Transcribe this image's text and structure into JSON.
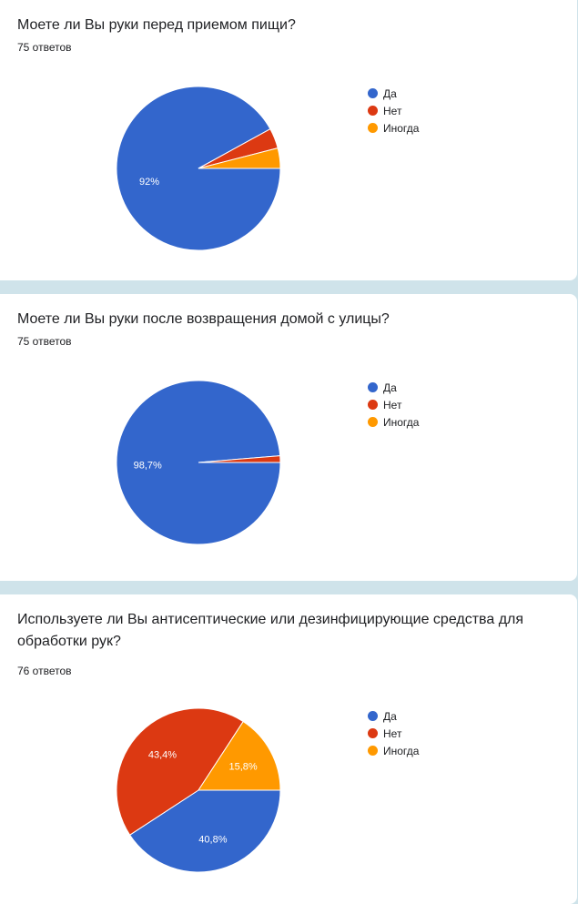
{
  "colors": {
    "yes": "#3366cc",
    "no": "#dc3912",
    "sometimes": "#ff9900"
  },
  "legend_labels": [
    "Да",
    "Нет",
    "Иногда"
  ],
  "chart_data": [
    {
      "type": "pie",
      "title": "Моете ли Вы руки перед приемом пищи?",
      "subtitle": "75 ответов",
      "categories": [
        "Да",
        "Нет",
        "Иногда"
      ],
      "values": [
        92,
        4,
        4
      ],
      "data_labels": [
        "92%",
        "",
        ""
      ],
      "legend_position": "right"
    },
    {
      "type": "pie",
      "title": "Моете ли Вы руки после возвращения домой с улицы?",
      "subtitle": "75 ответов",
      "categories": [
        "Да",
        "Нет",
        "Иногда"
      ],
      "values": [
        98.7,
        1.3,
        0
      ],
      "data_labels": [
        "98,7%",
        "",
        ""
      ],
      "legend_position": "right"
    },
    {
      "type": "pie",
      "title": "Используете ли Вы антисептические или дезинфицирующие средства для обработки рук?",
      "subtitle": "76 ответов",
      "categories": [
        "Да",
        "Нет",
        "Иногда"
      ],
      "values": [
        40.8,
        43.4,
        15.8
      ],
      "data_labels": [
        "40,8%",
        "43,4%",
        "15,8%"
      ],
      "legend_position": "right"
    }
  ]
}
